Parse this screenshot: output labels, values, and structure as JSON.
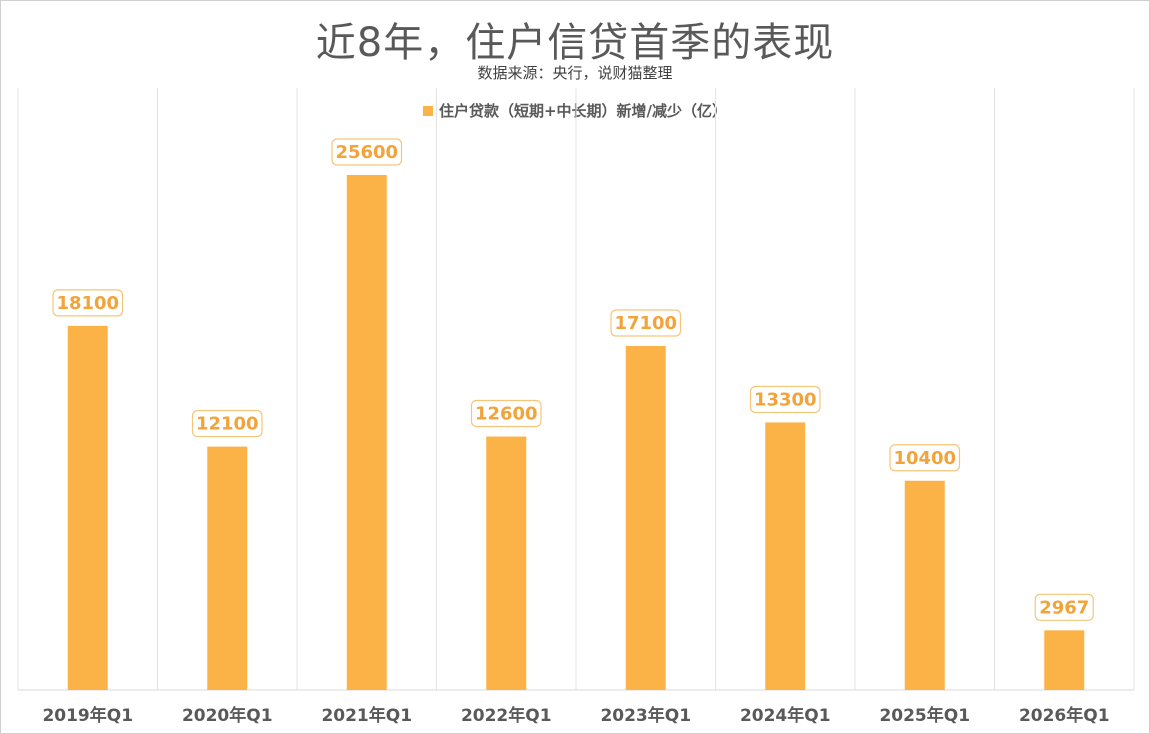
{
  "chart_data": {
    "type": "bar",
    "title": "近8年，住户信贷首季的表现",
    "subtitle": "数据来源：央行，说财猫整理",
    "legend": "住户贷款（短期+中长期）新增/减少（亿）",
    "legend_position": "top-center",
    "categories": [
      "2019年Q1",
      "2020年Q1",
      "2021年Q1",
      "2022年Q1",
      "2023年Q1",
      "2024年Q1",
      "2025年Q1",
      "2026年Q1"
    ],
    "series": [
      {
        "name": "住户贷款（短期+中长期）新增/减少（亿）",
        "values": [
          18100,
          12100,
          25600,
          12600,
          17100,
          13300,
          10400,
          2967
        ],
        "color": "#fbb347"
      }
    ],
    "ylim": [
      0,
      30000
    ],
    "grid": "vertical-category-separators",
    "label_color": "#f2a43a",
    "xlabel": "",
    "ylabel": ""
  }
}
